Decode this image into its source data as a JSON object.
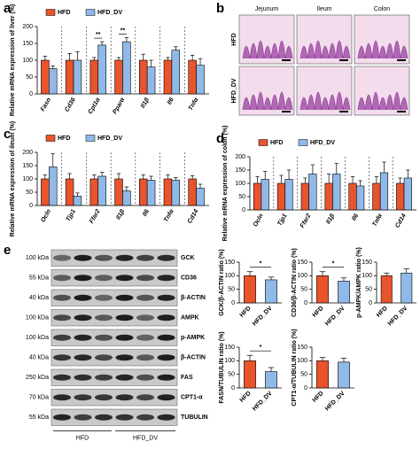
{
  "panel_labels": [
    "a",
    "b",
    "c",
    "d",
    "e"
  ],
  "histology": {
    "columns": [
      "Jejunum",
      "Ileum",
      "Colon"
    ],
    "rows": [
      "HFD",
      "HFD_DV"
    ]
  },
  "blot": {
    "sizes": [
      "100 kDa",
      "55 kDa",
      "40 kDa",
      "100 kDa",
      "100 kDa",
      "40 kDa",
      "250 kDa",
      "70 kDa",
      "55 kDa"
    ],
    "proteins": [
      "GCK",
      "CD36",
      "β-ACTIN",
      "AMPK",
      "p-AMPK",
      "β-ACTIN",
      "FAS",
      "CPT1-α",
      "TUBULIN"
    ],
    "groups": [
      "HFD",
      "HFD_DV"
    ]
  },
  "chart_data": [
    {
      "type": "bar",
      "y_label": "Relative mRNA expression of liver (%)",
      "categories": [
        "Fasn",
        "Cd36",
        "Cpt1α",
        "Pparα",
        "Il1β",
        "Il6",
        "Tnfα"
      ],
      "series": [
        {
          "name": "HFD",
          "color": "#e8542c",
          "values": [
            100,
            100,
            100,
            100,
            100,
            100,
            100
          ],
          "errors": [
            12,
            20,
            8,
            8,
            18,
            8,
            15
          ]
        },
        {
          "name": "HFD_DV",
          "color": "#8fb9e8",
          "values": [
            75,
            100,
            145,
            155,
            80,
            130,
            85
          ],
          "errors": [
            8,
            25,
            10,
            12,
            20,
            10,
            20
          ]
        }
      ],
      "annotations": [
        {
          "text": "**",
          "category": "Cpt1α"
        },
        {
          "text": "**",
          "category": "Pparα"
        }
      ],
      "ylim": [
        0,
        200
      ],
      "yticks": [
        0,
        50,
        100,
        150,
        200
      ]
    },
    {
      "type": "bar",
      "y_label": "Relative mRNA expression of ileum (%)",
      "categories": [
        "Ocln",
        "Tjp1",
        "Ffar2",
        "Il1β",
        "Il6",
        "Tnfα",
        "Cd14"
      ],
      "series": [
        {
          "name": "HFD",
          "color": "#e8542c",
          "values": [
            100,
            100,
            100,
            100,
            100,
            100,
            100
          ],
          "errors": [
            15,
            20,
            15,
            20,
            15,
            15,
            12
          ]
        },
        {
          "name": "HFD_DV",
          "color": "#8fb9e8",
          "values": [
            145,
            35,
            110,
            55,
            95,
            95,
            65
          ],
          "errors": [
            50,
            12,
            15,
            15,
            15,
            10,
            15
          ]
        }
      ],
      "ylim": [
        0,
        200
      ],
      "yticks": [
        0,
        50,
        100,
        150,
        200
      ]
    },
    {
      "type": "bar",
      "y_label": "Relative mRNA expression of colon (%)",
      "categories": [
        "Ocln",
        "Tjp1",
        "Ffar2",
        "Il1β",
        "Il6",
        "Tnfα",
        "Cd14"
      ],
      "series": [
        {
          "name": "HFD",
          "color": "#e8542c",
          "values": [
            100,
            100,
            100,
            100,
            100,
            100,
            100
          ],
          "errors": [
            25,
            30,
            20,
            35,
            25,
            25,
            20
          ]
        },
        {
          "name": "HFD_DV",
          "color": "#8fb9e8",
          "values": [
            115,
            115,
            135,
            135,
            90,
            140,
            120
          ],
          "errors": [
            30,
            35,
            35,
            40,
            20,
            40,
            30
          ]
        }
      ],
      "ylim": [
        0,
        200
      ],
      "yticks": [
        0,
        50,
        100,
        150,
        200
      ]
    },
    {
      "type": "bar",
      "y_label": "GCK/β-ACTIN ratio (%)",
      "categories": [
        "HFD",
        "HFD_DV"
      ],
      "values": [
        100,
        85
      ],
      "errors": [
        15,
        10
      ],
      "colors": [
        "#e8542c",
        "#8fb9e8"
      ],
      "annotations": [
        {
          "text": "*"
        }
      ],
      "ylim": [
        0,
        150
      ],
      "yticks": [
        0,
        50,
        100,
        150
      ]
    },
    {
      "type": "bar",
      "y_label": "CD36/β-ACTIN ratio (%)",
      "categories": [
        "HFD",
        "HFD_DV"
      ],
      "values": [
        100,
        80
      ],
      "errors": [
        15,
        12
      ],
      "colors": [
        "#e8542c",
        "#8fb9e8"
      ],
      "annotations": [
        {
          "text": "*"
        }
      ],
      "ylim": [
        0,
        150
      ],
      "yticks": [
        0,
        50,
        100,
        150
      ]
    },
    {
      "type": "bar",
      "y_label": "p-AMPK/AMPK ratio (%)",
      "categories": [
        "HFD",
        "HFD_DV"
      ],
      "values": [
        100,
        110
      ],
      "errors": [
        10,
        15
      ],
      "colors": [
        "#e8542c",
        "#8fb9e8"
      ],
      "ylim": [
        0,
        150
      ],
      "yticks": [
        0,
        50,
        100,
        150
      ]
    },
    {
      "type": "bar",
      "y_label": "FASN/TUBULIN ratio (%)",
      "categories": [
        "HFD",
        "HFD_DV"
      ],
      "values": [
        100,
        60
      ],
      "errors": [
        20,
        15
      ],
      "colors": [
        "#e8542c",
        "#8fb9e8"
      ],
      "annotations": [
        {
          "text": "*"
        }
      ],
      "ylim": [
        0,
        150
      ],
      "yticks": [
        0,
        50,
        100,
        150
      ]
    },
    {
      "type": "bar",
      "y_label": "CPT1-α/TUBULIN ratio (%)",
      "categories": [
        "HFD",
        "HFD_DV"
      ],
      "values": [
        100,
        95
      ],
      "errors": [
        12,
        15
      ],
      "colors": [
        "#e8542c",
        "#8fb9e8"
      ],
      "ylim": [
        0,
        150
      ],
      "yticks": [
        0,
        50,
        100,
        150
      ]
    }
  ]
}
